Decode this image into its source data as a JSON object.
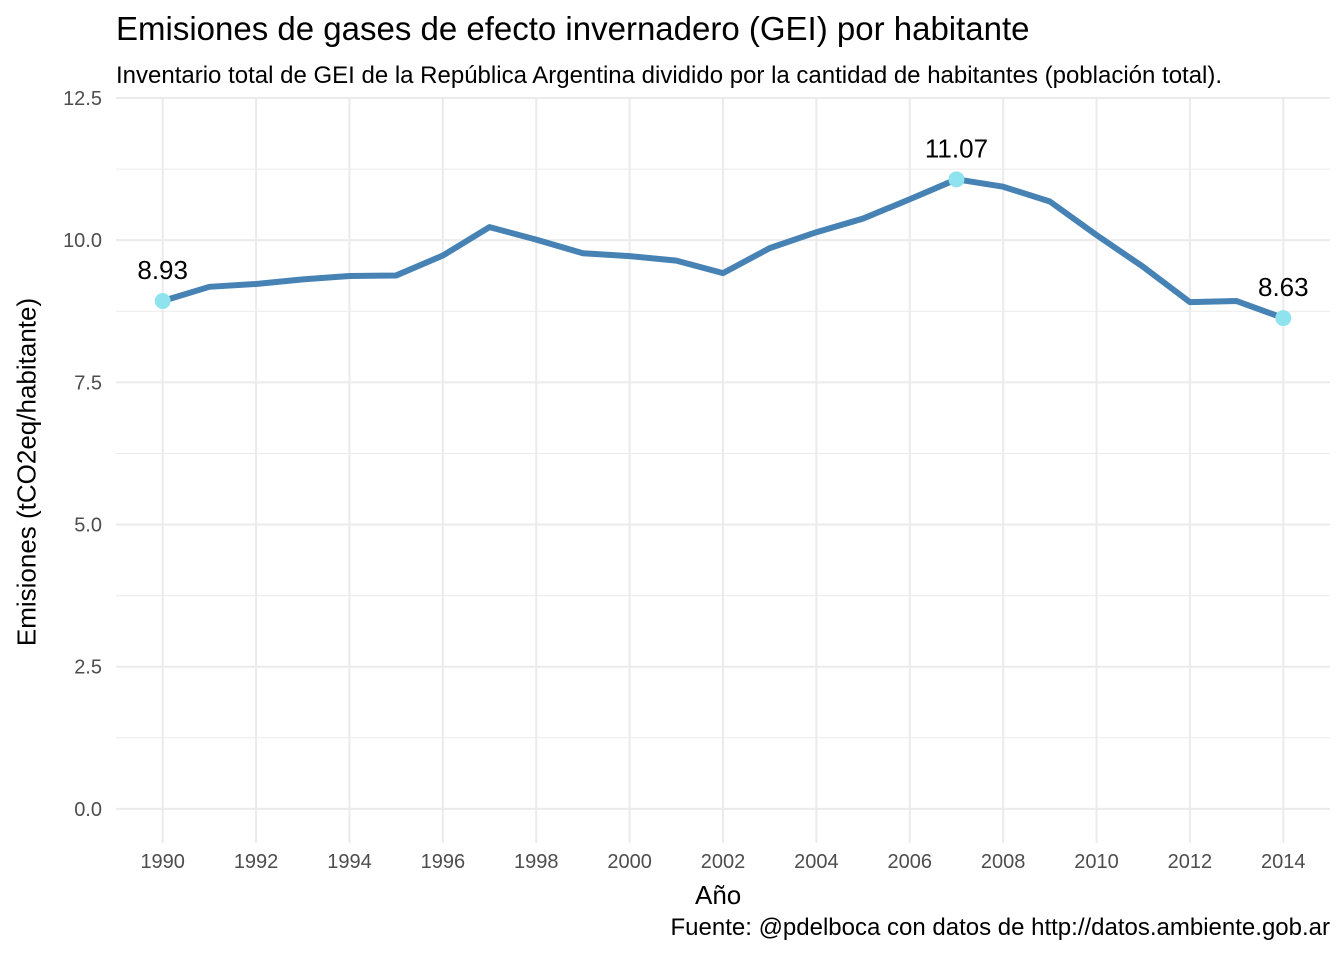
{
  "chart_data": {
    "type": "line",
    "title": "Emisiones de gases de efecto invernadero (GEI) por habitante",
    "subtitle": "Inventario total de GEI de la República Argentina dividido por la cantidad de habitantes (población total).",
    "caption": "Fuente: @pdelboca con datos de http://datos.ambiente.gob.ar",
    "xlabel": "Año",
    "ylabel": "Emisiones (tCO2eq/habitante)",
    "xlim": [
      1989.0,
      2015.0
    ],
    "ylim": [
      -0.6,
      12.5
    ],
    "x_ticks": [
      1990,
      1992,
      1994,
      1996,
      1998,
      2000,
      2002,
      2004,
      2006,
      2008,
      2010,
      2012,
      2014
    ],
    "x_tick_labels": [
      "1990",
      "1992",
      "1994",
      "1996",
      "1998",
      "2000",
      "2002",
      "2004",
      "2006",
      "2008",
      "2010",
      "2012",
      "2014"
    ],
    "y_ticks": [
      0.0,
      2.5,
      5.0,
      7.5,
      10.0,
      12.5
    ],
    "y_tick_labels": [
      "0.0",
      "2.5",
      "5.0",
      "7.5",
      "10.0",
      "12.5"
    ],
    "grid": true,
    "legend": "none",
    "series": [
      {
        "color": "#4682B4",
        "x": [
          1990,
          1991,
          1992,
          1993,
          1994,
          1995,
          1996,
          1997,
          1998,
          1999,
          2000,
          2001,
          2002,
          2003,
          2004,
          2005,
          2006,
          2007,
          2008,
          2009,
          2010,
          2011,
          2012,
          2013,
          2014
        ],
        "y": [
          8.93,
          9.18,
          9.23,
          9.31,
          9.37,
          9.38,
          9.73,
          10.23,
          10.01,
          9.77,
          9.72,
          9.64,
          9.42,
          9.86,
          10.14,
          10.38,
          10.72,
          11.07,
          10.94,
          10.68,
          10.09,
          9.53,
          8.91,
          8.93,
          8.63
        ]
      }
    ],
    "highlights": {
      "color": "#8FE3EE",
      "points": [
        {
          "x": 1990,
          "y": 8.93,
          "label": "8.93"
        },
        {
          "x": 2007,
          "y": 11.07,
          "label": "11.07"
        },
        {
          "x": 2014,
          "y": 8.63,
          "label": "8.63"
        }
      ]
    },
    "colors": {
      "line": "#4682B4",
      "highlight_point": "#8FE3EE",
      "grid": "#EBEBEB",
      "tick_text": "#4D4D4D"
    }
  }
}
